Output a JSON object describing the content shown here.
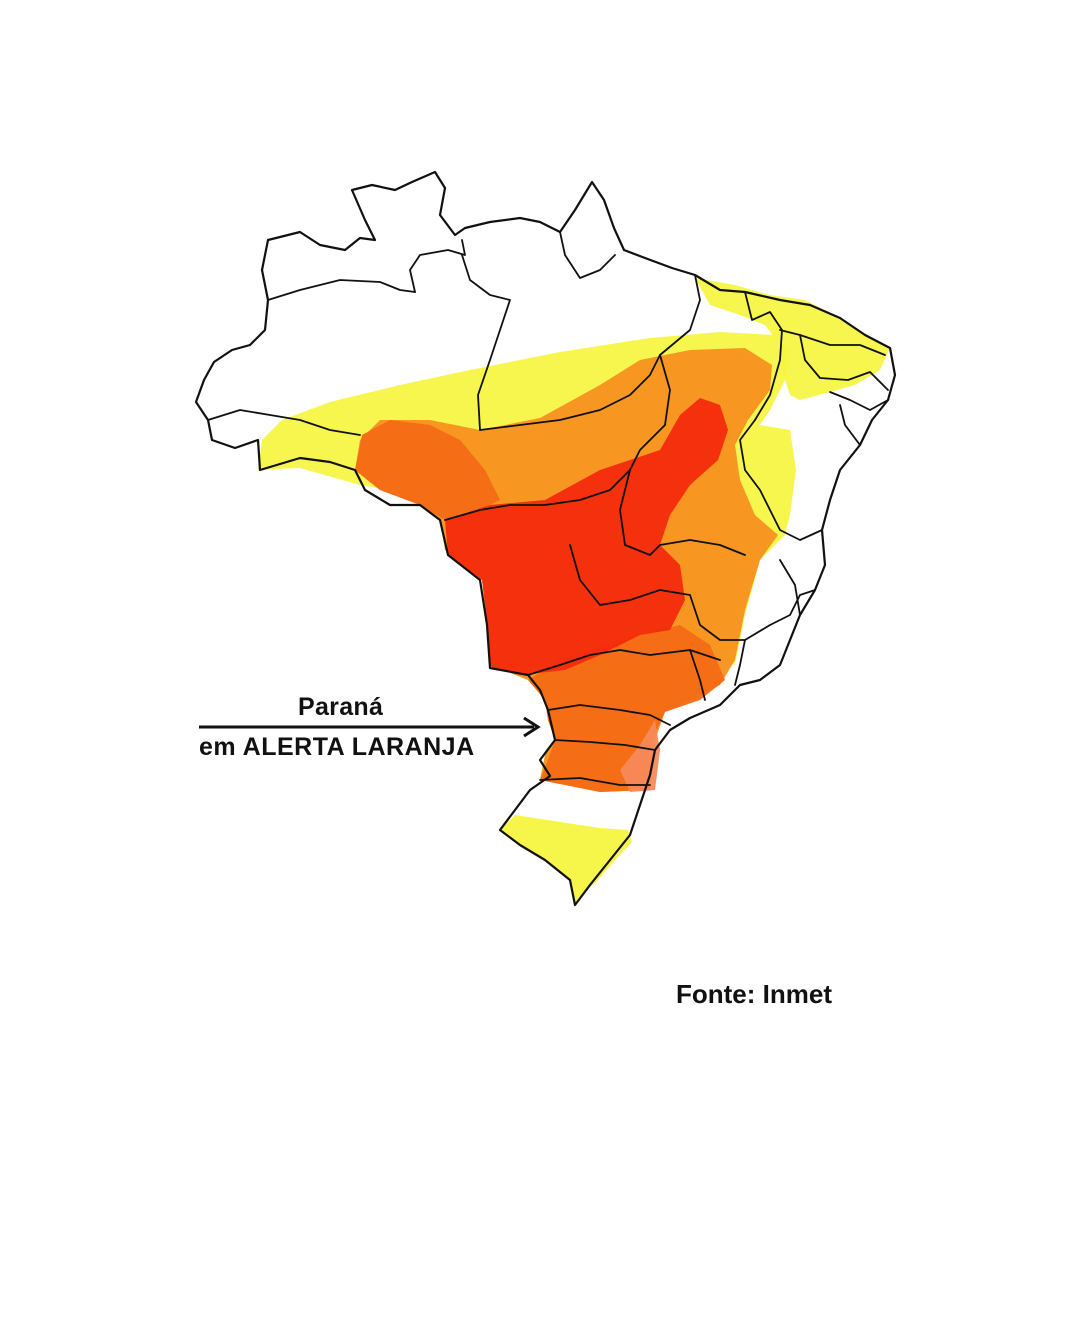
{
  "map": {
    "annotation": {
      "state_name": "Paraná",
      "alert_text": "em ALERTA LARANJA"
    },
    "source": "Fonte: Inmet",
    "alert_levels": [
      {
        "level": "yellow",
        "color": "#f5f540"
      },
      {
        "level": "orange",
        "color": "#f7901e"
      },
      {
        "level": "dark-orange",
        "color": "#f46a14"
      },
      {
        "level": "red",
        "color": "#f42a0c"
      }
    ],
    "colors": {
      "outline": "#111111",
      "background": "#ffffff"
    },
    "arrow_icon": "arrow-right-icon"
  }
}
